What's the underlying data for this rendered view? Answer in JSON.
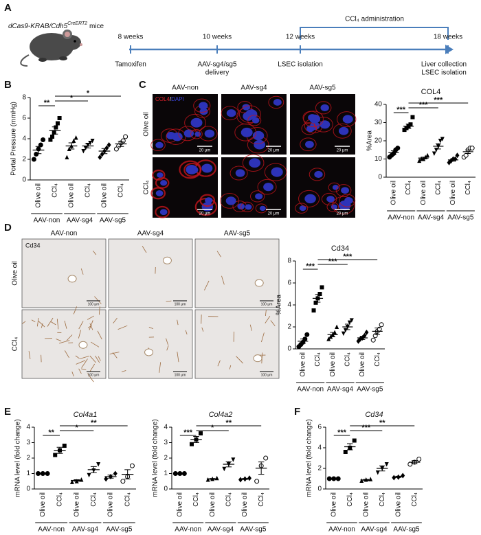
{
  "panels": {
    "letters": [
      "A",
      "B",
      "C",
      "D",
      "E",
      "F"
    ]
  },
  "timeline": {
    "title": [
      "dCas9-KRAB/Cdh5",
      "CreERT2",
      " mice"
    ],
    "timepoints": [
      "8 weeks",
      "10 weeks",
      "12 weeks",
      "18 weeks"
    ],
    "events": [
      [
        "Tamoxifen"
      ],
      [
        "AAV-sg4/sg5",
        "delivery"
      ],
      [
        "LSEC isolation"
      ],
      [
        "Liver collection",
        "LSEC isolation"
      ]
    ],
    "treatment": "CCl₄ administration"
  },
  "images_C": {
    "columns": [
      "AAV-non",
      "AAV-sg4",
      "AAV-sg5"
    ],
    "rows": [
      "Olive oil",
      "CCl₄"
    ],
    "stain": [
      "COL4",
      "/",
      "DAPI"
    ],
    "scale": "20 μm"
  },
  "images_D": {
    "columns": [
      "AAV-non",
      "AAV-sg4",
      "AAV-sg5"
    ],
    "rows": [
      "Olive oil",
      "CCl₄"
    ],
    "stain": "Cd34",
    "scale": "100 μm"
  },
  "chart_data": [
    {
      "type": "dot",
      "ylabel": "Portal Pressure (mmHg)",
      "categories": [
        "Olive oil",
        "CCl₄",
        "Olive oil",
        "CCl₄",
        "Olive oil",
        "CCl₄"
      ],
      "groups": [
        "AAV-non",
        "AAV-sg4",
        "AAV-sg5"
      ],
      "points": [
        [
          2.0,
          2.5,
          3.0,
          3.4,
          3.9
        ],
        [
          3.9,
          4.2,
          4.6,
          5.1,
          5.5,
          6.0
        ],
        [
          2.2,
          3.0,
          3.3,
          3.8,
          4.1
        ],
        [
          2.8,
          3.1,
          3.4,
          3.6,
          3.8
        ],
        [
          2.2,
          2.5,
          2.8,
          3.1,
          3.4
        ],
        [
          3.0,
          3.3,
          3.6,
          3.8,
          4.2
        ]
      ],
      "means": [
        2.9,
        4.8,
        3.3,
        3.3,
        2.8,
        3.5
      ],
      "sem": [
        0.35,
        0.35,
        0.3,
        0.2,
        0.25,
        0.25
      ],
      "ylim": [
        0,
        8
      ],
      "yticks": [
        0,
        2,
        4,
        6,
        8
      ],
      "comparisons": [
        {
          "between": [
            0,
            1
          ],
          "label": "**"
        },
        {
          "between": [
            1,
            3
          ],
          "label": "*"
        },
        {
          "between": [
            1,
            5
          ],
          "label": "*"
        }
      ],
      "markers": [
        "circle",
        "square",
        "triangle",
        "triangle-down",
        "diamond",
        "circle-open"
      ]
    },
    {
      "type": "dot",
      "title": "COL4",
      "ylabel": "%Area",
      "categories": [
        "Olive oil",
        "CCl₄",
        "Olive oil",
        "CCl₄",
        "Olive oil",
        "CCl₄"
      ],
      "groups": [
        "AAV-non",
        "AAV-sg4",
        "AAV-sg5"
      ],
      "points": [
        [
          11,
          12,
          13,
          15,
          16
        ],
        [
          26,
          27,
          28,
          29,
          33
        ],
        [
          9,
          10,
          10,
          11,
          12
        ],
        [
          13,
          15,
          17,
          20,
          21
        ],
        [
          8,
          9,
          10,
          10,
          12
        ],
        [
          11,
          12,
          15,
          16,
          16
        ]
      ],
      "means": [
        13.5,
        28,
        10.5,
        17,
        9.5,
        14
      ],
      "sem": [
        1,
        1.2,
        0.5,
        1.5,
        0.7,
        1
      ],
      "ylim": [
        0,
        40
      ],
      "yticks": [
        0,
        10,
        20,
        30,
        40
      ],
      "comparisons": [
        {
          "between": [
            0,
            1
          ],
          "label": "***"
        },
        {
          "between": [
            1,
            3
          ],
          "label": "***"
        },
        {
          "between": [
            1,
            5
          ],
          "label": "***"
        }
      ],
      "markers": [
        "circle",
        "square",
        "triangle",
        "triangle-down",
        "diamond",
        "circle-open"
      ]
    },
    {
      "type": "dot",
      "title": "Cd34",
      "ylabel": "%Area",
      "categories": [
        "Olive oil",
        "CCl₄",
        "Olive oil",
        "CCl₄",
        "Olive oil",
        "CCl₄"
      ],
      "groups": [
        "AAV-non",
        "AAV-sg4",
        "AAV-sg5"
      ],
      "points": [
        [
          0.2,
          0.4,
          0.6,
          0.9,
          1.3
        ],
        [
          3.5,
          4.2,
          4.6,
          5.0,
          5.6
        ],
        [
          0.9,
          1.1,
          1.3,
          1.5,
          2.0
        ],
        [
          1.4,
          1.7,
          2.0,
          2.4,
          2.6
        ],
        [
          0.7,
          0.9,
          1.0,
          1.2,
          1.5
        ],
        [
          0.8,
          1.2,
          1.6,
          1.8,
          2.2
        ]
      ],
      "means": [
        0.7,
        4.6,
        1.3,
        2.0,
        1.0,
        1.6
      ],
      "sem": [
        0.2,
        0.35,
        0.2,
        0.25,
        0.15,
        0.3
      ],
      "ylim": [
        0,
        8
      ],
      "yticks": [
        0,
        2,
        4,
        6,
        8
      ],
      "comparisons": [
        {
          "between": [
            0,
            1
          ],
          "label": "***"
        },
        {
          "between": [
            1,
            3
          ],
          "label": "***"
        },
        {
          "between": [
            1,
            5
          ],
          "label": "***"
        }
      ],
      "markers": [
        "circle",
        "square",
        "triangle",
        "triangle-down",
        "diamond",
        "circle-open"
      ]
    },
    {
      "type": "dot",
      "title": "Col4a1",
      "title_italic": true,
      "ylabel": "mRNA level (fold change)",
      "categories": [
        "Olive oil",
        "CCl₄",
        "Olive oil",
        "CCl₄",
        "Olive oil",
        "CCl₄"
      ],
      "groups": [
        "AAV-non",
        "AAV-sg4",
        "AAV-sg5"
      ],
      "points": [
        [
          1,
          1,
          1
        ],
        [
          2.2,
          2.5,
          2.8
        ],
        [
          0.45,
          0.5,
          0.6
        ],
        [
          0.9,
          1.2,
          1.6
        ],
        [
          0.65,
          0.8,
          1.0
        ],
        [
          0.5,
          0.8,
          1.5
        ]
      ],
      "means": [
        1,
        2.5,
        0.55,
        1.25,
        0.8,
        0.95
      ],
      "sem": [
        0,
        0.2,
        0.05,
        0.2,
        0.1,
        0.3
      ],
      "ylim": [
        0,
        4
      ],
      "yticks": [
        0,
        1,
        2,
        3,
        4
      ],
      "comparisons": [
        {
          "between": [
            0,
            1
          ],
          "label": "**"
        },
        {
          "between": [
            1,
            3
          ],
          "label": "*"
        },
        {
          "between": [
            1,
            5
          ],
          "label": "**"
        }
      ],
      "markers": [
        "circle",
        "square",
        "triangle",
        "triangle-down",
        "diamond",
        "circle-open"
      ]
    },
    {
      "type": "dot",
      "title": "Col4a2",
      "title_italic": true,
      "ylabel": "mRNA level (fold change)",
      "categories": [
        "Olive oil",
        "CCl₄",
        "Olive oil",
        "CCl₄",
        "Olive oil",
        "CCl₄"
      ],
      "groups": [
        "AAV-non",
        "AAV-sg4",
        "AAV-sg5"
      ],
      "points": [
        [
          1,
          1,
          1
        ],
        [
          2.9,
          3.2,
          3.6
        ],
        [
          0.6,
          0.65,
          0.7
        ],
        [
          1.3,
          1.6,
          1.9
        ],
        [
          0.6,
          0.65,
          0.7
        ],
        [
          0.5,
          1.5,
          2.0
        ]
      ],
      "means": [
        1,
        3.2,
        0.65,
        1.6,
        0.65,
        1.35
      ],
      "sem": [
        0,
        0.2,
        0.03,
        0.17,
        0.03,
        0.4
      ],
      "ylim": [
        0,
        4
      ],
      "yticks": [
        0,
        1,
        2,
        3,
        4
      ],
      "comparisons": [
        {
          "between": [
            0,
            1
          ],
          "label": "***"
        },
        {
          "between": [
            1,
            3
          ],
          "label": "*"
        },
        {
          "between": [
            1,
            5
          ],
          "label": "**"
        }
      ],
      "markers": [
        "circle",
        "square",
        "triangle",
        "triangle-down",
        "diamond",
        "circle-open"
      ]
    },
    {
      "type": "dot",
      "title": "Cd34",
      "title_italic": true,
      "ylabel": "mRNA level (fold change)",
      "categories": [
        "Olive oil",
        "CCl₄",
        "Olive oil",
        "CCl₄",
        "Olive oil",
        "CCl₄"
      ],
      "groups": [
        "AAV-non",
        "AAV-sg4",
        "AAV-sg5"
      ],
      "points": [
        [
          1,
          1,
          1
        ],
        [
          3.6,
          4.0,
          4.7
        ],
        [
          0.8,
          0.9,
          0.95
        ],
        [
          1.6,
          2.0,
          2.4
        ],
        [
          1.1,
          1.15,
          1.3
        ],
        [
          2.4,
          2.6,
          2.9
        ]
      ],
      "means": [
        1,
        4.1,
        0.88,
        2.0,
        1.18,
        2.6
      ],
      "sem": [
        0,
        0.3,
        0.05,
        0.25,
        0.06,
        0.15
      ],
      "ylim": [
        0,
        6
      ],
      "yticks": [
        0,
        2,
        4,
        6
      ],
      "comparisons": [
        {
          "between": [
            0,
            1
          ],
          "label": "***"
        },
        {
          "between": [
            1,
            3
          ],
          "label": "***"
        },
        {
          "between": [
            1,
            5
          ],
          "label": "**"
        }
      ],
      "markers": [
        "circle",
        "square",
        "triangle",
        "triangle-down",
        "diamond",
        "circle-open"
      ]
    }
  ]
}
